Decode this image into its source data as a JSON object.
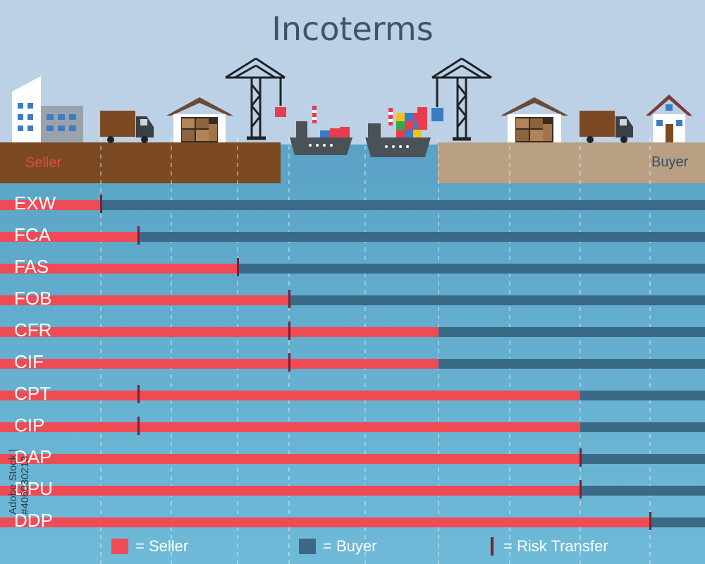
{
  "title": "Incoterms",
  "seller_label": "Seller",
  "buyer_label": "Buyer",
  "stages": [
    "Seller premises",
    "Truck",
    "Warehouse",
    "Crane (origin port)",
    "Ship (origin)",
    "Ship (destination)",
    "Crane (destination port)",
    "Warehouse",
    "Truck",
    "Buyer premises"
  ],
  "terms": [
    {
      "code": "EXW",
      "seller_end": 0.143,
      "risk": 0.143
    },
    {
      "code": "FCA",
      "seller_end": 0.196,
      "risk": 0.196
    },
    {
      "code": "FAS",
      "seller_end": 0.337,
      "risk": 0.337
    },
    {
      "code": "FOB",
      "seller_end": 0.41,
      "risk": 0.41
    },
    {
      "code": "CFR",
      "seller_end": 0.622,
      "risk": 0.41
    },
    {
      "code": "CIF",
      "seller_end": 0.622,
      "risk": 0.41
    },
    {
      "code": "CPT",
      "seller_end": 0.823,
      "risk": 0.196
    },
    {
      "code": "CIP",
      "seller_end": 0.823,
      "risk": 0.196
    },
    {
      "code": "DAP",
      "seller_end": 0.823,
      "risk": 0.823
    },
    {
      "code": "DPU",
      "seller_end": 0.823,
      "risk": 0.823
    },
    {
      "code": "DDP",
      "seller_end": 0.922,
      "risk": 0.922
    }
  ],
  "legend": {
    "seller": "= Seller",
    "buyer": "= Buyer",
    "risk": "= Risk Transfer"
  },
  "colors": {
    "seller": "#ee4b55",
    "buyer": "#3b6a86",
    "risk": "#7a2233",
    "sky": "#bdd2e6",
    "water": "#5ba5c6"
  },
  "watermark": "Adobe Stock | #406030213"
}
